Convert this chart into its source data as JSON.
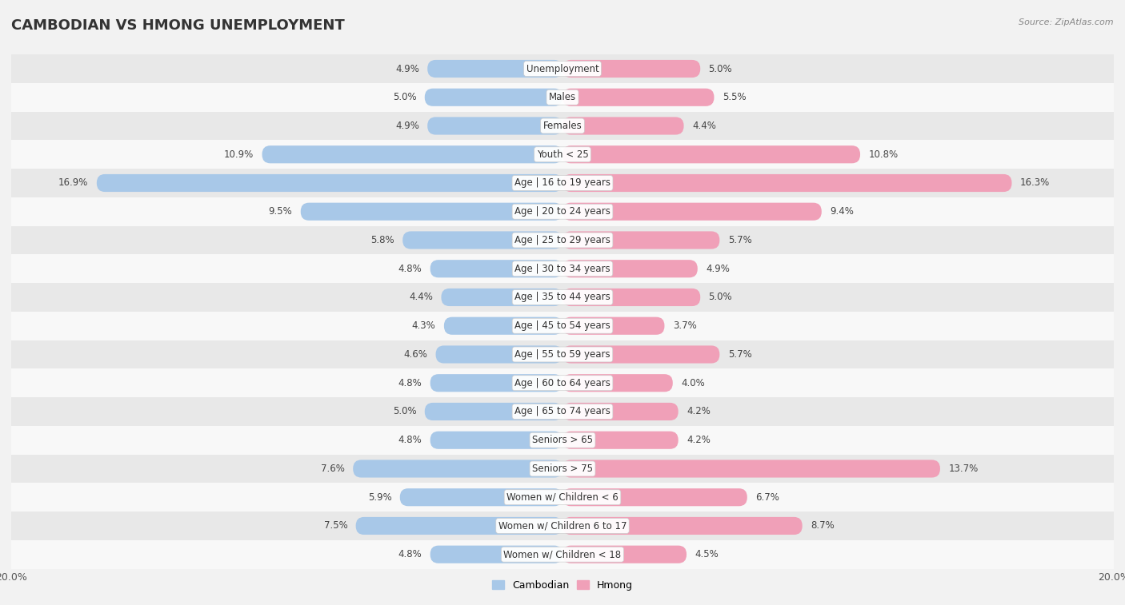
{
  "title": "CAMBODIAN VS HMONG UNEMPLOYMENT",
  "source": "Source: ZipAtlas.com",
  "categories": [
    "Unemployment",
    "Males",
    "Females",
    "Youth < 25",
    "Age | 16 to 19 years",
    "Age | 20 to 24 years",
    "Age | 25 to 29 years",
    "Age | 30 to 34 years",
    "Age | 35 to 44 years",
    "Age | 45 to 54 years",
    "Age | 55 to 59 years",
    "Age | 60 to 64 years",
    "Age | 65 to 74 years",
    "Seniors > 65",
    "Seniors > 75",
    "Women w/ Children < 6",
    "Women w/ Children 6 to 17",
    "Women w/ Children < 18"
  ],
  "cambodian": [
    4.9,
    5.0,
    4.9,
    10.9,
    16.9,
    9.5,
    5.8,
    4.8,
    4.4,
    4.3,
    4.6,
    4.8,
    5.0,
    4.8,
    7.6,
    5.9,
    7.5,
    4.8
  ],
  "hmong": [
    5.0,
    5.5,
    4.4,
    10.8,
    16.3,
    9.4,
    5.7,
    4.9,
    5.0,
    3.7,
    5.7,
    4.0,
    4.2,
    4.2,
    13.7,
    6.7,
    8.7,
    4.5
  ],
  "cambodian_color": "#a8c8e8",
  "hmong_color": "#f0a0b8",
  "background_color": "#f2f2f2",
  "row_alt_color": "#e8e8e8",
  "row_base_color": "#f8f8f8",
  "max_val": 20.0,
  "title_fontsize": 13,
  "label_fontsize": 8.5,
  "value_fontsize": 8.5
}
